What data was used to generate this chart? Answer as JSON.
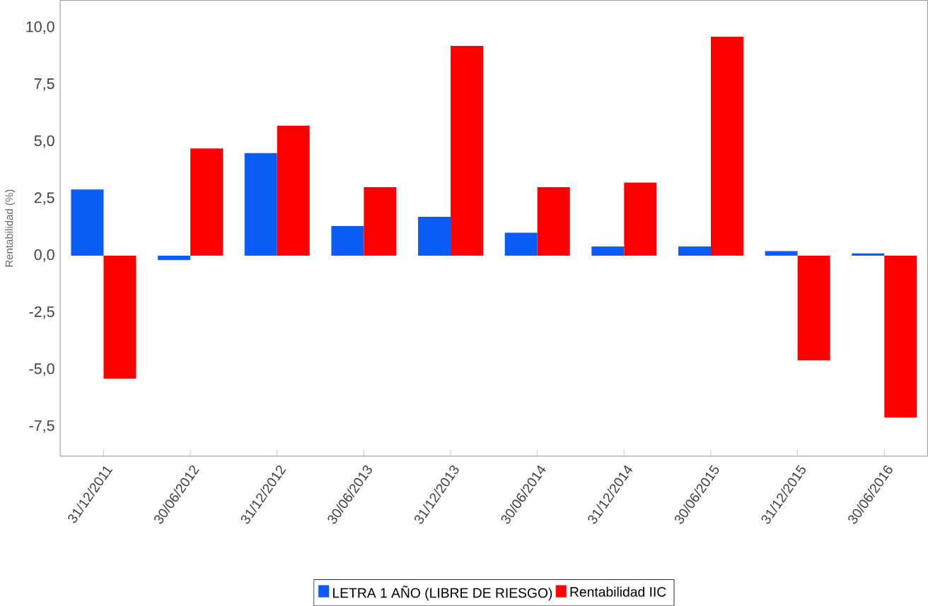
{
  "chart_data": {
    "type": "bar",
    "ylabel": "Rentabilidad (%)",
    "categories": [
      "31/12/2011",
      "30/06/2012",
      "31/12/2012",
      "30/06/2013",
      "31/12/2013",
      "30/06/2014",
      "31/12/2014",
      "30/06/2015",
      "31/12/2015",
      "30/06/2016"
    ],
    "series": [
      {
        "name": "LETRA 1 AÑO (LIBRE DE RIESGO)",
        "color": "#0a5cf5",
        "values": [
          2.9,
          -0.2,
          4.5,
          1.3,
          1.7,
          1.0,
          0.4,
          0.4,
          0.2,
          0.1
        ]
      },
      {
        "name": "Rentabilidad IIC",
        "color": "#ff0000",
        "values": [
          -5.4,
          4.7,
          5.7,
          3.0,
          9.2,
          3.0,
          3.2,
          9.6,
          -4.6,
          -7.1
        ]
      }
    ],
    "ylim": [
      -8.8,
      11.2
    ],
    "yticks": [
      {
        "value": -7.5,
        "label": "-7,5"
      },
      {
        "value": -5,
        "label": "-5,0"
      },
      {
        "value": -2.5,
        "label": "-2,5"
      },
      {
        "value": 0,
        "label": "0,0"
      },
      {
        "value": 2.5,
        "label": "2,5"
      },
      {
        "value": 5,
        "label": "5,0"
      },
      {
        "value": 7.5,
        "label": "7,5"
      },
      {
        "value": 10,
        "label": "10,0"
      }
    ],
    "grid": false,
    "legend": "bottom"
  }
}
